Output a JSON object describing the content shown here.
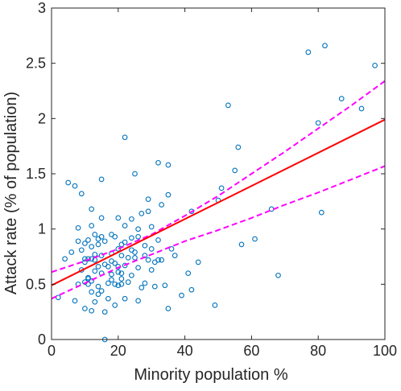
{
  "chart_data": {
    "type": "scatter",
    "xlabel": "Minority population %",
    "ylabel": "Attack rate (% of population)",
    "xlim": [
      0,
      100
    ],
    "ylim": [
      0,
      3
    ],
    "x_ticks": [
      0,
      20,
      40,
      60,
      80,
      100
    ],
    "y_ticks": [
      0,
      0.5,
      1,
      1.5,
      2,
      2.5,
      3
    ],
    "x_tick_labels": [
      "0",
      "20",
      "40",
      "60",
      "80",
      "100"
    ],
    "y_tick_labels": [
      "0",
      "0.5",
      "1",
      "1.5",
      "2",
      "2.5",
      "3"
    ],
    "grid": false,
    "box": true,
    "colors": {
      "points": "#0072BD",
      "fit_line": "#ff0000",
      "confidence_band": "#ff00ff",
      "axes": "#262626"
    },
    "series": [
      {
        "role": "data points",
        "style": "open circles",
        "points": [
          [
            2,
            0.38
          ],
          [
            4,
            0.73
          ],
          [
            5,
            1.42
          ],
          [
            6,
            0.79
          ],
          [
            7,
            1.39
          ],
          [
            7,
            0.35
          ],
          [
            8,
            1.01
          ],
          [
            8,
            0.89
          ],
          [
            8,
            0.5
          ],
          [
            9,
            0.81
          ],
          [
            9,
            0.63
          ],
          [
            9,
            1.32
          ],
          [
            10,
            0.87
          ],
          [
            10,
            0.52
          ],
          [
            10,
            0.73
          ],
          [
            10,
            0.7
          ],
          [
            10,
            0.28
          ],
          [
            11,
            0.9
          ],
          [
            11,
            0.73
          ],
          [
            11,
            0.55
          ],
          [
            11,
            0.5
          ],
          [
            11,
            0.56
          ],
          [
            12,
            1.18
          ],
          [
            12,
            1.03
          ],
          [
            12,
            0.84
          ],
          [
            12,
            0.73
          ],
          [
            12,
            0.53
          ],
          [
            12,
            0.43
          ],
          [
            12,
            0.26
          ],
          [
            13,
            0.95
          ],
          [
            13,
            0.77
          ],
          [
            13,
            0.72
          ],
          [
            13,
            0.62
          ],
          [
            13,
            0.34
          ],
          [
            14,
            0.91
          ],
          [
            14,
            0.86
          ],
          [
            14,
            0.66
          ],
          [
            14,
            0.48
          ],
          [
            14,
            0.41
          ],
          [
            15,
            1.45
          ],
          [
            15,
            1.1
          ],
          [
            15,
            0.93
          ],
          [
            15,
            0.76
          ],
          [
            15,
            0.6
          ],
          [
            15,
            0.44
          ],
          [
            16,
            0.89
          ],
          [
            16,
            0.68
          ],
          [
            16,
            0.25
          ],
          [
            16,
            0.0
          ],
          [
            17,
            0.66
          ],
          [
            17,
            0.51
          ],
          [
            17,
            0.37
          ],
          [
            18,
            0.95
          ],
          [
            18,
            0.78
          ],
          [
            18,
            0.71
          ],
          [
            18,
            0.59
          ],
          [
            18,
            0.54
          ],
          [
            19,
            0.93
          ],
          [
            19,
            0.69
          ],
          [
            19,
            0.5
          ],
          [
            19,
            0.31
          ],
          [
            20,
            1.1
          ],
          [
            20,
            0.82
          ],
          [
            20,
            0.66
          ],
          [
            20,
            0.61
          ],
          [
            20,
            0.49
          ],
          [
            21,
            0.86
          ],
          [
            21,
            0.76
          ],
          [
            21,
            0.5
          ],
          [
            21,
            0.55
          ],
          [
            21,
            0.6
          ],
          [
            22,
            1.83
          ],
          [
            22,
            1.03
          ],
          [
            22,
            0.88
          ],
          [
            22,
            0.67
          ],
          [
            22,
            0.37
          ],
          [
            23,
            0.74
          ],
          [
            23,
            0.52
          ],
          [
            24,
            1.09
          ],
          [
            24,
            0.92
          ],
          [
            24,
            0.81
          ],
          [
            24,
            0.58
          ],
          [
            25,
            1.5
          ],
          [
            25,
            0.79
          ],
          [
            25,
            0.74
          ],
          [
            26,
            1.0
          ],
          [
            26,
            0.93
          ],
          [
            26,
            0.65
          ],
          [
            26,
            0.35
          ],
          [
            27,
            1.14
          ],
          [
            27,
            0.47
          ],
          [
            28,
            0.85
          ],
          [
            28,
            0.76
          ],
          [
            28,
            0.51
          ],
          [
            29,
            1.27
          ],
          [
            29,
            1.16
          ],
          [
            29,
            0.72
          ],
          [
            30,
            1.02
          ],
          [
            30,
            0.82
          ],
          [
            30,
            0.63
          ],
          [
            31,
            0.7
          ],
          [
            31,
            0.48
          ],
          [
            32,
            1.6
          ],
          [
            32,
            0.9
          ],
          [
            32,
            0.72
          ],
          [
            33,
            1.22
          ],
          [
            33,
            0.72
          ],
          [
            34,
            0.49
          ],
          [
            35,
            1.58
          ],
          [
            35,
            1.31
          ],
          [
            35,
            0.28
          ],
          [
            36,
            0.82
          ],
          [
            37,
            0.76
          ],
          [
            39,
            0.4
          ],
          [
            41,
            0.6
          ],
          [
            42,
            1.16
          ],
          [
            42,
            0.45
          ],
          [
            44,
            0.7
          ],
          [
            49,
            0.31
          ],
          [
            50,
            1.26
          ],
          [
            51,
            1.37
          ],
          [
            53,
            2.12
          ],
          [
            55,
            1.53
          ],
          [
            56,
            1.74
          ],
          [
            57,
            0.86
          ],
          [
            61,
            0.91
          ],
          [
            66,
            1.18
          ],
          [
            68,
            0.58
          ],
          [
            77,
            2.6
          ],
          [
            80,
            1.96
          ],
          [
            81,
            1.15
          ],
          [
            82,
            2.66
          ],
          [
            87,
            2.18
          ],
          [
            93,
            2.09
          ],
          [
            97,
            2.48
          ]
        ]
      },
      {
        "role": "regression fit",
        "style": "solid line",
        "x": [
          0,
          100
        ],
        "y": [
          0.49,
          1.99
        ]
      },
      {
        "role": "upper confidence bound",
        "style": "dashed line",
        "x": [
          0,
          10,
          20,
          30,
          40,
          50,
          60,
          70,
          80,
          90,
          100
        ],
        "y": [
          0.61,
          0.71,
          0.82,
          0.95,
          1.12,
          1.3,
          1.5,
          1.7,
          1.91,
          2.12,
          2.34
        ]
      },
      {
        "role": "lower confidence bound",
        "style": "dashed line",
        "x": [
          0,
          10,
          20,
          30,
          40,
          50,
          60,
          70,
          80,
          90,
          100
        ],
        "y": [
          0.37,
          0.51,
          0.65,
          0.77,
          0.89,
          0.99,
          1.1,
          1.22,
          1.33,
          1.45,
          1.57
        ]
      }
    ]
  }
}
